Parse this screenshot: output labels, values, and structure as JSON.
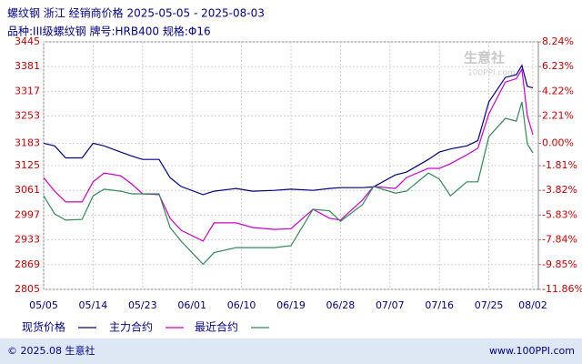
{
  "chart_data": {
    "type": "line",
    "title": "螺纹钢 浙江 经销商价格 2025-05-05 - 2025-08-03",
    "subtitle": "品种:III级螺纹钢 牌号:HRB400 规格:Φ16",
    "x": [
      "05/05",
      "05/07",
      "05/09",
      "05/12",
      "05/14",
      "05/16",
      "05/19",
      "05/21",
      "05/23",
      "05/26",
      "05/28",
      "05/30",
      "06/03",
      "06/05",
      "06/09",
      "06/12",
      "06/16",
      "06/19",
      "06/23",
      "06/26",
      "06/28",
      "07/02",
      "07/04",
      "07/08",
      "07/10",
      "07/14",
      "07/16",
      "07/18",
      "07/21",
      "07/23",
      "07/25",
      "07/28",
      "07/30",
      "07/31",
      "08/01",
      "08/02"
    ],
    "xlim": [
      "05/05",
      "08/03"
    ],
    "xticks": [
      "05/05",
      "05/14",
      "05/23",
      "06/01",
      "06/10",
      "06/19",
      "06/28",
      "07/07",
      "07/16",
      "07/25",
      "08/02"
    ],
    "series": [
      {
        "name": "现货价格",
        "color": "#00008b",
        "values": [
          3183,
          3176,
          3145,
          3145,
          3183,
          3176,
          3160,
          3150,
          3141,
          3141,
          3094,
          3071,
          3050,
          3059,
          3066,
          3059,
          3061,
          3064,
          3061,
          3066,
          3068,
          3068,
          3070,
          3101,
          3108,
          3141,
          3160,
          3168,
          3176,
          3190,
          3290,
          3353,
          3360,
          3384,
          3330,
          3326
        ]
      },
      {
        "name": "主力合约",
        "color": "#cc00cc",
        "values": [
          3094,
          3059,
          3031,
          3031,
          3083,
          3106,
          3099,
          3078,
          3052,
          3050,
          2989,
          2958,
          2930,
          2977,
          2977,
          2965,
          2960,
          2962,
          3012,
          2989,
          2984,
          3036,
          3071,
          3066,
          3094,
          3118,
          3118,
          3130,
          3153,
          3170,
          3259,
          3341,
          3350,
          3374,
          3254,
          3205
        ]
      },
      {
        "name": "最近合约",
        "color": "#2e8b57",
        "values": [
          3047,
          3000,
          2984,
          2986,
          3047,
          3064,
          3059,
          3052,
          3052,
          3052,
          2965,
          2930,
          2870,
          2900,
          2913,
          2913,
          2913,
          2918,
          3012,
          3008,
          2981,
          3024,
          3071,
          3054,
          3059,
          3106,
          3090,
          3047,
          3083,
          3083,
          3200,
          3247,
          3240,
          3290,
          3181,
          3158
        ]
      }
    ],
    "ylim": [
      2805,
      3445
    ],
    "yticks": [
      3445,
      3381,
      3317,
      3253,
      3183,
      3125,
      3061,
      2997,
      2933,
      2869,
      2805
    ],
    "y2lim": [
      -11.86,
      8.24
    ],
    "y2ticks": [
      {
        "value": 8.24,
        "label": "8.24%"
      },
      {
        "value": 6.23,
        "label": "6.23%"
      },
      {
        "value": 4.22,
        "label": "4.22%"
      },
      {
        "value": 2.21,
        "label": "2.21%"
      },
      {
        "value": 0,
        "label": "0.00%"
      },
      {
        "value": -1.81,
        "label": "-1.81%"
      },
      {
        "value": -3.82,
        "label": "-3.82%"
      },
      {
        "value": -5.83,
        "label": "-5.83%"
      },
      {
        "value": -7.84,
        "label": "-7.84%"
      },
      {
        "value": -9.85,
        "label": "-9.85%"
      },
      {
        "value": -11.86,
        "label": "-11.86%"
      }
    ],
    "grid": true,
    "watermark": [
      "生意社",
      "100PPI.com"
    ],
    "footer": {
      "left": "© 2025.08 生意社",
      "right": "www.100PPI.com"
    }
  }
}
